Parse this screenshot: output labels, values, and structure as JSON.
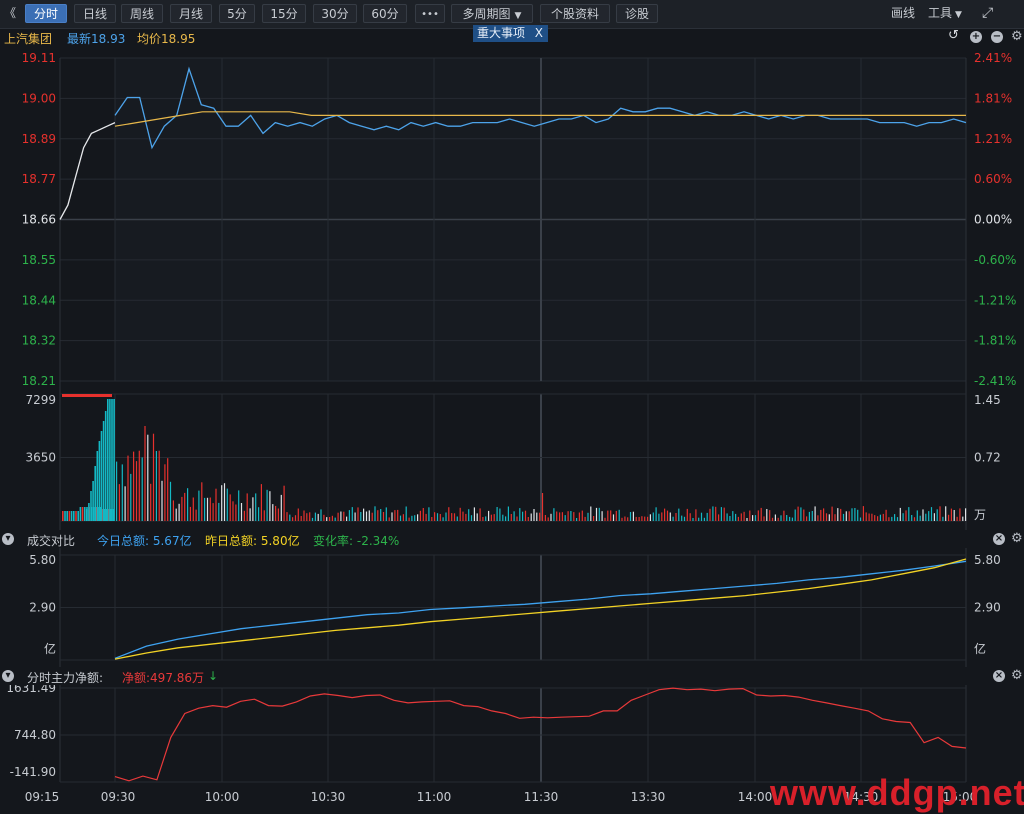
{
  "toolbar": {
    "back_glyph": "《",
    "tabs": [
      "分时",
      "日线",
      "周线",
      "月线",
      "5分",
      "15分",
      "30分",
      "60分"
    ],
    "more": "•••",
    "multi_period": "多周期图",
    "profile": "个股资料",
    "diagnose": "诊股",
    "draw": "画线",
    "tools": "工具",
    "fullscreen_icon": "expand-icon"
  },
  "header": {
    "stock_name": "上汽集团",
    "latest": "最新18.93",
    "avg": "均价18.95",
    "event_tag": "重大事项",
    "event_close": "X"
  },
  "price_axis": {
    "left_labels": [
      "19.11",
      "19.00",
      "18.89",
      "18.77",
      "18.66",
      "18.55",
      "18.44",
      "18.32",
      "18.21"
    ],
    "right_labels": [
      "2.41%",
      "1.81%",
      "1.21%",
      "0.60%",
      "0.00%",
      "-0.60%",
      "-1.21%",
      "-1.81%",
      "-2.41%"
    ],
    "up_color": "#e6312d",
    "down_color": "#2db34b",
    "flat_color": "#e0e3e7"
  },
  "volume_axis": {
    "left_labels": [
      "7299",
      "3650"
    ],
    "right_labels": [
      "1.45",
      "0.72",
      "万"
    ]
  },
  "turnover": {
    "title": "成交对比",
    "today": "今日总额: 5.67亿",
    "yesterday": "昨日总额: 5.80亿",
    "change": "变化率: -2.34%",
    "left_labels": [
      "5.80",
      "2.90",
      "亿"
    ],
    "right_labels": [
      "5.80",
      "2.90",
      "亿"
    ]
  },
  "netflow": {
    "title": "分时主力净额:",
    "net": "净额:497.86万",
    "arrow": "↓",
    "left_labels": [
      "1631.49",
      "744.80",
      "-141.90"
    ]
  },
  "time_axis": [
    "09:15",
    "09:30",
    "10:00",
    "10:30",
    "11:00",
    "11:30",
    "13:30",
    "14:00",
    "14:30",
    "15:00"
  ],
  "watermark": "www.ddgp.net",
  "colors": {
    "price_line": "#4da3ea",
    "avg_line": "#e8b84a",
    "today_line": "#3ea2f0",
    "yesterday_line": "#f2d225",
    "netflow_line": "#e8393a",
    "vol_up": "#e6312d",
    "vol_down": "#14b8c4",
    "vol_flat": "#e0e3e7"
  },
  "chart_data": [
    {
      "type": "line",
      "title": "",
      "ylim": [
        18.21,
        19.11
      ],
      "series": [
        {
          "name": "最新",
          "values": [
            18.66,
            18.7,
            18.78,
            18.86,
            18.9,
            18.91,
            18.92,
            18.93,
            18.95,
            19.0,
            19.0,
            18.86,
            18.92,
            18.95,
            19.08,
            18.98,
            18.97,
            18.92,
            18.92,
            18.95,
            18.9,
            18.93,
            18.92,
            18.93,
            18.92,
            18.94,
            18.95,
            18.93,
            18.92,
            18.91,
            18.92,
            18.91,
            18.93,
            18.92,
            18.93,
            18.92,
            18.92,
            18.93,
            18.93,
            18.93,
            18.94,
            18.93,
            18.92,
            18.93,
            18.94,
            18.94,
            18.95,
            18.93,
            18.94,
            18.97,
            18.96,
            18.96,
            18.97,
            18.97,
            18.96,
            18.95,
            18.96,
            18.95,
            18.95,
            18.96,
            18.95,
            18.94,
            18.95,
            18.94,
            18.95,
            18.95,
            18.94,
            18.94,
            18.94,
            18.94,
            18.93,
            18.93,
            18.93,
            18.92,
            18.93,
            18.93,
            18.94,
            18.93
          ]
        },
        {
          "name": "均价",
          "values": [
            18.92,
            18.93,
            18.94,
            18.95,
            18.96,
            18.96,
            18.96,
            18.96,
            18.96,
            18.95,
            18.95,
            18.95,
            18.95,
            18.95,
            18.95,
            18.95,
            18.95,
            18.95,
            18.95,
            18.95,
            18.95,
            18.95,
            18.95,
            18.95,
            18.95,
            18.95,
            18.95,
            18.95,
            18.95,
            18.95,
            18.95,
            18.95,
            18.95,
            18.95,
            18.95,
            18.95,
            18.95,
            18.95,
            18.95,
            18.95
          ]
        }
      ]
    },
    {
      "type": "line",
      "title": "成交对比",
      "ylim": [
        0,
        5.8
      ],
      "series": [
        {
          "name": "今日总额",
          "values": [
            0.1,
            0.8,
            1.2,
            1.5,
            1.8,
            2.0,
            2.2,
            2.4,
            2.6,
            2.7,
            2.9,
            3.0,
            3.1,
            3.2,
            3.35,
            3.5,
            3.7,
            3.8,
            3.95,
            4.1,
            4.25,
            4.4,
            4.6,
            4.75,
            4.95,
            5.15,
            5.4,
            5.67
          ]
        },
        {
          "name": "昨日总额",
          "values": [
            0.05,
            0.4,
            0.7,
            0.9,
            1.1,
            1.3,
            1.5,
            1.7,
            1.85,
            2.0,
            2.2,
            2.35,
            2.5,
            2.65,
            2.8,
            2.95,
            3.1,
            3.25,
            3.4,
            3.55,
            3.7,
            3.9,
            4.1,
            4.35,
            4.6,
            4.95,
            5.3,
            5.8
          ]
        }
      ]
    },
    {
      "type": "line",
      "title": "分时主力净额",
      "ylim": [
        -141.9,
        1631.49
      ],
      "series": [
        {
          "name": "净额",
          "values": [
            -40,
            -120,
            -30,
            -100,
            700,
            1150,
            1250,
            1300,
            1270,
            1380,
            1420,
            1300,
            1290,
            1370,
            1480,
            1520,
            1490,
            1450,
            1490,
            1500,
            1400,
            1350,
            1370,
            1380,
            1390,
            1300,
            1280,
            1200,
            1150,
            1060,
            1080,
            1070,
            1080,
            1090,
            1100,
            1200,
            1200,
            1400,
            1500,
            1600,
            1630,
            1600,
            1610,
            1580,
            1610,
            1620,
            1500,
            1480,
            1490,
            1460,
            1400,
            1350,
            1300,
            1250,
            1200,
            1050,
            1000,
            980,
            600,
            700,
            530,
            500
          ]
        }
      ]
    }
  ]
}
